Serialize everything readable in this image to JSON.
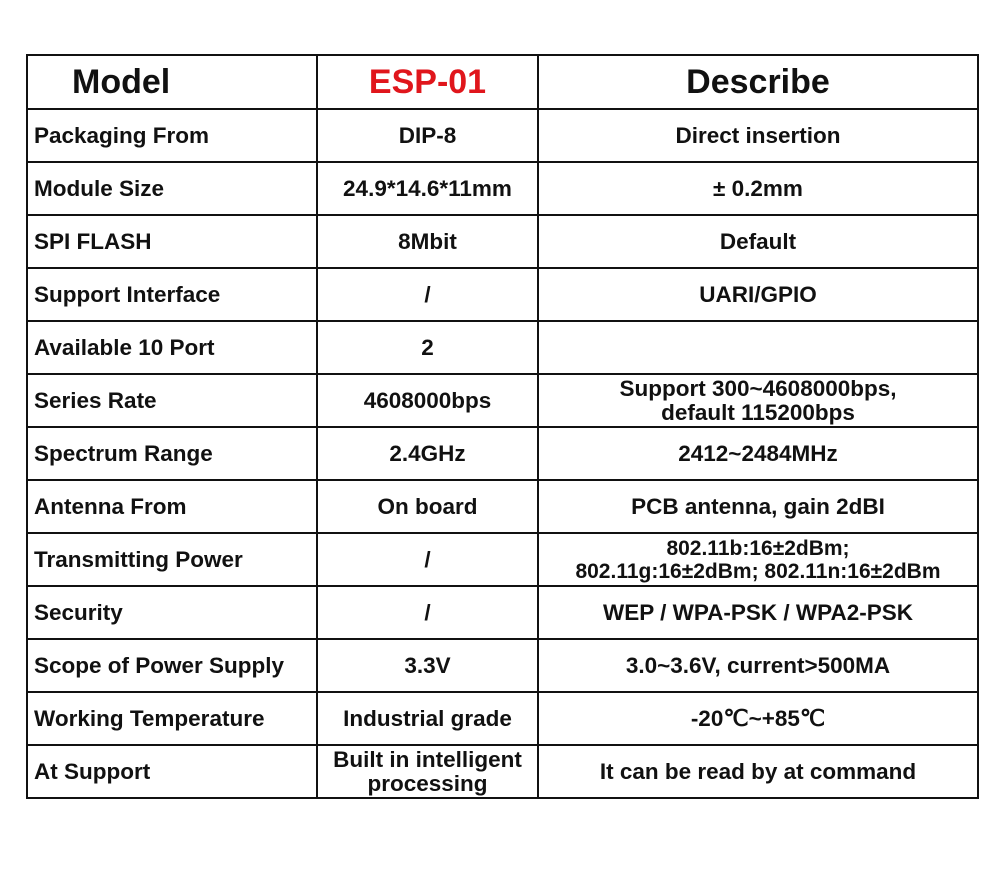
{
  "header": {
    "model_label": "Model",
    "model_value": "ESP-01",
    "describe_label": "Describe"
  },
  "colors": {
    "model_value": "#e0161c",
    "text": "#111111",
    "border": "#111111"
  },
  "rows": [
    {
      "name": "Packaging From",
      "value": "DIP-8",
      "describe": "Direct insertion"
    },
    {
      "name": "Module Size",
      "value": "24.9*14.6*11mm",
      "describe": "± 0.2mm"
    },
    {
      "name": "SPI FLASH",
      "value": "8Mbit",
      "describe": "Default"
    },
    {
      "name": "Support Interface",
      "value": "/",
      "describe": "UARI/GPIO"
    },
    {
      "name": "Available 10 Port",
      "value": "2",
      "describe": ""
    },
    {
      "name": "Series Rate",
      "value": "4608000bps",
      "describe": "Support 300~4608000bps,",
      "describe2": "default 115200bps"
    },
    {
      "name": "Spectrum Range",
      "value": "2.4GHz",
      "describe": "2412~2484MHz"
    },
    {
      "name": "Antenna From",
      "value": "On board",
      "describe": "PCB antenna, gain 2dBI"
    },
    {
      "name": "Transmitting Power",
      "value": "/",
      "describe": "802.11b:16±2dBm;",
      "describe2": "802.11g:16±2dBm; 802.11n:16±2dBm"
    },
    {
      "name": "Security",
      "value": "/",
      "describe": "WEP / WPA-PSK / WPA2-PSK"
    },
    {
      "name": "Scope of Power Supply",
      "value": "3.3V",
      "describe": "3.0~3.6V, current>500MA"
    },
    {
      "name": "Working Temperature",
      "value": "Industrial grade",
      "describe": "-20℃~+85℃"
    },
    {
      "name": "At Support",
      "value": "Built in intelligent",
      "value2": "processing",
      "describe": "It can be read by at command"
    }
  ]
}
